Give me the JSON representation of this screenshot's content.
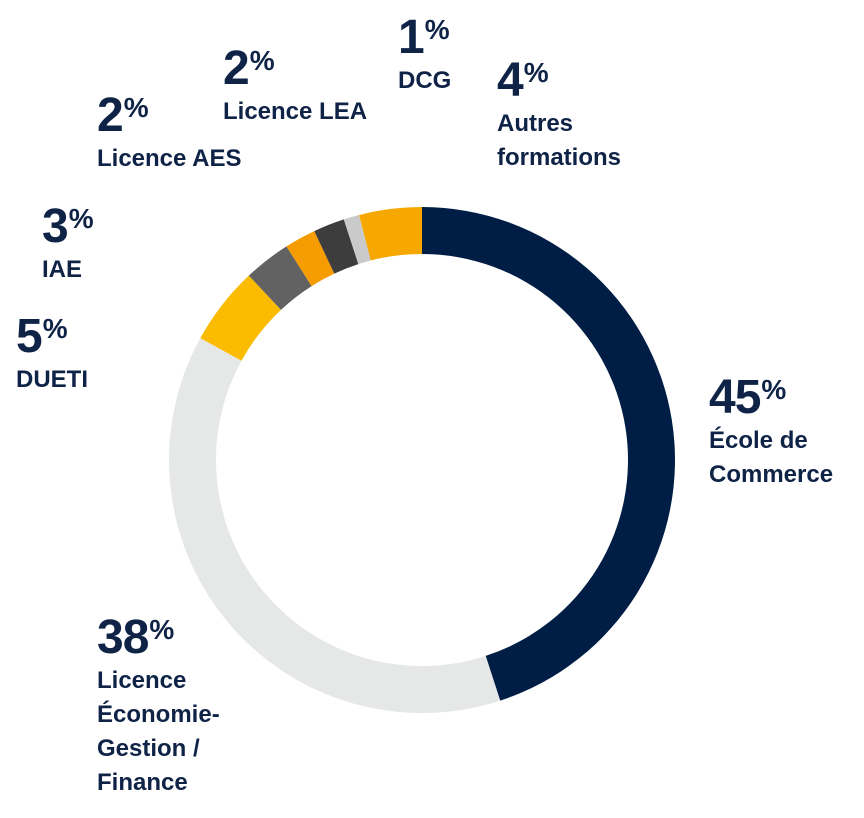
{
  "chart_data": {
    "type": "pie",
    "style": "donut",
    "unit": "%",
    "slices": [
      {
        "label": "École de\nCommerce",
        "value": 45,
        "display": "45",
        "color": "#001e45"
      },
      {
        "label": "Licence\nÉconomie-\nGestion /\nFinance",
        "value": 38,
        "display": "38",
        "color": "#e6e8e7"
      },
      {
        "label": "DUETI",
        "value": 5,
        "display": "5",
        "color": "#fbbc00"
      },
      {
        "label": "IAE",
        "value": 3,
        "display": "3",
        "color": "#626262"
      },
      {
        "label": "Licence AES",
        "value": 2,
        "display": "2",
        "color": "#f59c00"
      },
      {
        "label": "Licence LEA",
        "value": 2,
        "display": "2",
        "color": "#3d3d3d"
      },
      {
        "label": "DCG",
        "value": 1,
        "display": "1",
        "color": "#c9cac9"
      },
      {
        "label": "Autres\nformations",
        "value": 4,
        "display": "4",
        "color": "#f6a800"
      }
    ]
  },
  "text": {
    "percent_sign": "%"
  }
}
